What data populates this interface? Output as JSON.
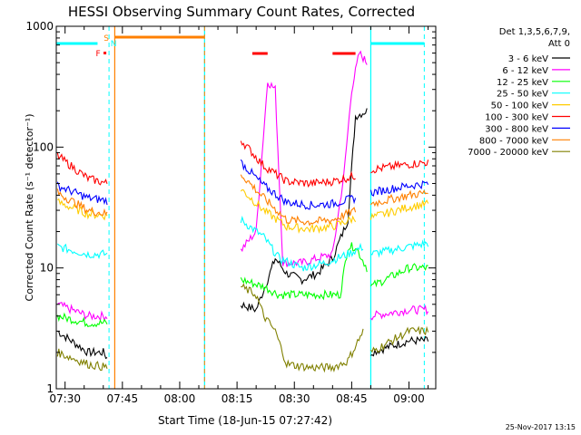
{
  "chart_data": {
    "type": "line",
    "title": "HESSI Observing Summary Count Rates, Corrected",
    "xlabel": "Start Time (18-Jun-15 07:27:42)",
    "ylabel": "Corrected Count Rate (s⁻¹ detector⁻¹)",
    "yscale": "log",
    "ylim": [
      1,
      1000
    ],
    "xlim": [
      "07:27:42",
      "09:07:00"
    ],
    "xtick_labels": [
      "07:30",
      "07:45",
      "08:00",
      "08:15",
      "08:30",
      "08:45",
      "09:00"
    ],
    "ytick_labels": [
      "1",
      "10",
      "100",
      "1000"
    ],
    "grid": false,
    "legend_position": "right",
    "legend_header": [
      "Det 1,3,5,6,7,9,",
      "Att 0"
    ],
    "timestamp": "25-Nov-2017 13:15",
    "flag_labels": {
      "s": "S",
      "n": "N",
      "f": "F"
    },
    "series": [
      {
        "name": "3 - 6 keV",
        "color": "#000000",
        "points": [
          [
            "07:28",
            3
          ],
          [
            "07:36",
            2
          ],
          [
            "07:40",
            2
          ],
          [
            "07:41",
            1.8
          ],
          [
            "08:07",
            null
          ],
          [
            "08:16",
            5
          ],
          [
            "08:20",
            4.5
          ],
          [
            "08:23",
            8
          ],
          [
            "08:25",
            12
          ],
          [
            "08:28",
            9
          ],
          [
            "08:32",
            8
          ],
          [
            "08:36",
            9
          ],
          [
            "08:40",
            12
          ],
          [
            "08:44",
            25
          ],
          [
            "08:46",
            180
          ],
          [
            "08:49",
            200
          ],
          [
            "08:50",
            null
          ],
          [
            "08:50",
            2
          ],
          [
            "09:00",
            2.5
          ],
          [
            "09:05",
            2.5
          ]
        ]
      },
      {
        "name": "6 - 12 keV",
        "color": "#ff00ff",
        "points": [
          [
            "07:28",
            5
          ],
          [
            "07:36",
            4
          ],
          [
            "07:41",
            4
          ],
          [
            "08:07",
            null
          ],
          [
            "08:16",
            14
          ],
          [
            "08:20",
            20
          ],
          [
            "08:23",
            350
          ],
          [
            "08:25",
            300
          ],
          [
            "08:27",
            11
          ],
          [
            "08:32",
            11
          ],
          [
            "08:36",
            12
          ],
          [
            "08:40",
            13
          ],
          [
            "08:43",
            60
          ],
          [
            "08:45",
            300
          ],
          [
            "08:47",
            600
          ],
          [
            "08:49",
            500
          ],
          [
            "08:50",
            null
          ],
          [
            "08:50",
            4
          ],
          [
            "09:00",
            4.5
          ],
          [
            "09:05",
            4.5
          ]
        ]
      },
      {
        "name": "12 - 25 keV",
        "color": "#00ff00",
        "points": [
          [
            "07:28",
            4
          ],
          [
            "07:36",
            3.5
          ],
          [
            "07:41",
            3.5
          ],
          [
            "08:07",
            null
          ],
          [
            "08:16",
            8
          ],
          [
            "08:22",
            7
          ],
          [
            "08:26",
            6
          ],
          [
            "08:32",
            6
          ],
          [
            "08:38",
            6
          ],
          [
            "08:42",
            6
          ],
          [
            "08:44",
            15
          ],
          [
            "08:46",
            15
          ],
          [
            "08:49",
            10
          ],
          [
            "08:50",
            null
          ],
          [
            "08:50",
            7
          ],
          [
            "09:00",
            10
          ],
          [
            "09:05",
            10
          ]
        ]
      },
      {
        "name": "25 - 50 keV",
        "color": "#00ffff",
        "points": [
          [
            "07:28",
            15
          ],
          [
            "07:36",
            13
          ],
          [
            "07:41",
            13
          ],
          [
            "08:07",
            null
          ],
          [
            "08:16",
            25
          ],
          [
            "08:22",
            18
          ],
          [
            "08:26",
            12
          ],
          [
            "08:32",
            10
          ],
          [
            "08:38",
            11
          ],
          [
            "08:44",
            13
          ],
          [
            "08:48",
            15
          ],
          [
            "08:50",
            null
          ],
          [
            "08:50",
            13
          ],
          [
            "09:00",
            15
          ],
          [
            "09:05",
            16
          ]
        ]
      },
      {
        "name": "50 - 100 keV",
        "color": "#ffcc00",
        "points": [
          [
            "07:28",
            35
          ],
          [
            "07:36",
            28
          ],
          [
            "07:41",
            27
          ],
          [
            "08:07",
            null
          ],
          [
            "08:16",
            45
          ],
          [
            "08:22",
            30
          ],
          [
            "08:28",
            22
          ],
          [
            "08:34",
            21
          ],
          [
            "08:40",
            22
          ],
          [
            "08:46",
            26
          ],
          [
            "08:50",
            null
          ],
          [
            "08:50",
            26
          ],
          [
            "09:00",
            32
          ],
          [
            "09:05",
            34
          ]
        ]
      },
      {
        "name": "100 - 300 keV",
        "color": "#ff0000",
        "points": [
          [
            "07:28",
            85
          ],
          [
            "07:36",
            55
          ],
          [
            "07:41",
            50
          ],
          [
            "08:07",
            null
          ],
          [
            "08:16",
            115
          ],
          [
            "08:22",
            70
          ],
          [
            "08:28",
            52
          ],
          [
            "08:34",
            50
          ],
          [
            "08:40",
            52
          ],
          [
            "08:46",
            58
          ],
          [
            "08:50",
            null
          ],
          [
            "08:50",
            65
          ],
          [
            "09:00",
            72
          ],
          [
            "09:05",
            75
          ]
        ]
      },
      {
        "name": "300 - 800 keV",
        "color": "#0000ff",
        "points": [
          [
            "07:28",
            48
          ],
          [
            "07:36",
            38
          ],
          [
            "07:41",
            36
          ],
          [
            "08:07",
            null
          ],
          [
            "08:16",
            75
          ],
          [
            "08:22",
            48
          ],
          [
            "08:28",
            35
          ],
          [
            "08:34",
            33
          ],
          [
            "08:40",
            34
          ],
          [
            "08:46",
            38
          ],
          [
            "08:50",
            null
          ],
          [
            "08:50",
            42
          ],
          [
            "09:00",
            48
          ],
          [
            "09:05",
            50
          ]
        ]
      },
      {
        "name": "800 - 7000 keV",
        "color": "#ff8000",
        "points": [
          [
            "07:28",
            42
          ],
          [
            "07:36",
            30
          ],
          [
            "07:41",
            28
          ],
          [
            "08:07",
            null
          ],
          [
            "08:16",
            60
          ],
          [
            "08:22",
            38
          ],
          [
            "08:28",
            25
          ],
          [
            "08:34",
            24
          ],
          [
            "08:40",
            25
          ],
          [
            "08:46",
            30
          ],
          [
            "08:50",
            null
          ],
          [
            "08:50",
            34
          ],
          [
            "09:00",
            40
          ],
          [
            "09:05",
            42
          ]
        ]
      },
      {
        "name": "7000 - 20000 keV",
        "color": "#808000",
        "points": [
          [
            "07:28",
            2
          ],
          [
            "07:36",
            1.6
          ],
          [
            "07:41",
            1.5
          ],
          [
            "08:07",
            null
          ],
          [
            "08:16",
            7
          ],
          [
            "08:20",
            6
          ],
          [
            "08:22",
            4
          ],
          [
            "08:25",
            3
          ],
          [
            "08:28",
            1.6
          ],
          [
            "08:34",
            1.5
          ],
          [
            "08:40",
            1.5
          ],
          [
            "08:44",
            1.7
          ],
          [
            "08:48",
            3
          ],
          [
            "08:50",
            null
          ],
          [
            "08:50",
            2
          ],
          [
            "09:00",
            3
          ],
          [
            "09:05",
            3
          ]
        ]
      }
    ],
    "markers": {
      "saa_color": "#00ffff",
      "night_color": "#ff8000",
      "flare_color": "#ff0000",
      "saa_bars": [
        [
          "07:27:42",
          "07:38:30"
        ],
        [
          "08:50",
          "09:04"
        ]
      ],
      "night_bars": [
        [
          "07:43",
          "08:06:30"
        ]
      ],
      "flare_bars": [
        [
          "08:19",
          "08:23"
        ],
        [
          "08:40",
          "08:46"
        ]
      ],
      "dashed_lines": [
        {
          "t": "07:41:30",
          "color": "#00ffff"
        },
        {
          "t": "08:06:30",
          "color": "#ff8000"
        },
        {
          "t": "09:04",
          "color": "#00ffff"
        }
      ],
      "solid_lines": [
        {
          "t": "07:43",
          "color": "#ff8000"
        },
        {
          "t": "08:06:30",
          "color": "#00ffff"
        },
        {
          "t": "08:50",
          "color": "#00ffff"
        }
      ]
    }
  }
}
